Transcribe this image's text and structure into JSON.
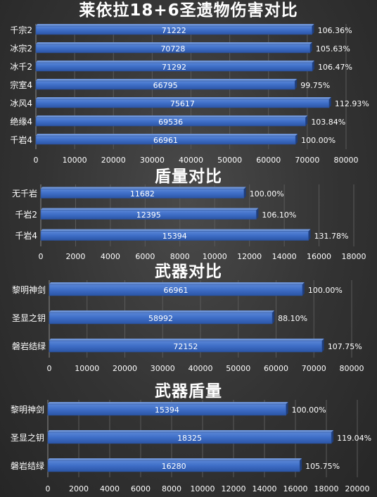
{
  "chart_data": [
    {
      "type": "bar",
      "orientation": "horizontal",
      "title": "莱依拉18+6圣遗物伤害对比",
      "categories": [
        "千宗2",
        "冰宗2",
        "冰千2",
        "宗室4",
        "冰风4",
        "绝缘4",
        "千岩4"
      ],
      "values": [
        71222,
        70728,
        71292,
        66795,
        75617,
        69536,
        66961
      ],
      "percent_labels": [
        "106.36%",
        "105.63%",
        "106.47%",
        "99.75%",
        "112.93%",
        "103.84%",
        "100.00%"
      ],
      "xlim": [
        0,
        80000
      ],
      "xticks": [
        "0",
        "10000",
        "20000",
        "30000",
        "40000",
        "50000",
        "60000",
        "70000",
        "80000"
      ],
      "grid": true,
      "color": "#3d6cc4"
    },
    {
      "type": "bar",
      "orientation": "horizontal",
      "title": "盾量对比",
      "categories": [
        "无千岩",
        "千岩2",
        "千岩4"
      ],
      "values": [
        11682,
        12395,
        15394
      ],
      "percent_labels": [
        "100.00%",
        "106.10%",
        "131.78%"
      ],
      "xlim": [
        0,
        18000
      ],
      "xticks": [
        "0",
        "2000",
        "4000",
        "6000",
        "8000",
        "10000",
        "12000",
        "14000",
        "16000",
        "18000"
      ],
      "grid": true,
      "color": "#3d6cc4"
    },
    {
      "type": "bar",
      "orientation": "horizontal",
      "title": "武器对比",
      "categories": [
        "黎明神剑",
        "圣显之钥",
        "磐岩结绿"
      ],
      "values": [
        66961,
        58992,
        72152
      ],
      "percent_labels": [
        "100.00%",
        "88.10%",
        "107.75%"
      ],
      "xlim": [
        0,
        80000
      ],
      "xticks": [
        "0",
        "10000",
        "20000",
        "30000",
        "40000",
        "50000",
        "60000",
        "70000",
        "80000"
      ],
      "grid": true,
      "color": "#3d6cc4"
    },
    {
      "type": "bar",
      "orientation": "horizontal",
      "title": "武器盾量",
      "categories": [
        "黎明神剑",
        "圣显之钥",
        "磐岩结绿"
      ],
      "values": [
        15394,
        18325,
        16280
      ],
      "percent_labels": [
        "100.00%",
        "119.04%",
        "105.75%"
      ],
      "xlim": [
        0,
        20000
      ],
      "xticks": [
        "0",
        "2000",
        "4000",
        "6000",
        "8000",
        "10000",
        "12000",
        "14000",
        "16000",
        "18000",
        "20000"
      ],
      "grid": true,
      "color": "#3d6cc4"
    }
  ]
}
